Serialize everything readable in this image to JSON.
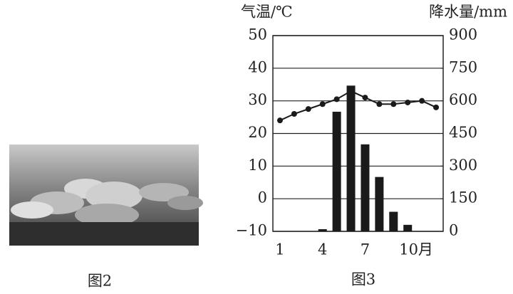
{
  "chart_data": {
    "type": "combo",
    "y_label": "气温/℃",
    "y2_label": "降水量/mm",
    "categories": [
      "1",
      null,
      null,
      "4",
      null,
      null,
      "7",
      null,
      null,
      "10月",
      null,
      null
    ],
    "series": [
      {
        "type": "bar",
        "axis": "y2",
        "color": "#1a1a1a",
        "values": [
          0,
          0,
          0,
          10,
          550,
          670,
          400,
          250,
          90,
          30,
          0,
          0
        ]
      },
      {
        "type": "line",
        "axis": "y",
        "color": "#1a1a1a",
        "values": [
          24,
          26,
          27.5,
          29,
          30.5,
          33,
          31,
          29,
          29,
          29.5,
          30,
          28
        ]
      }
    ],
    "ylim": [
      -10,
      50
    ],
    "yticks": [
      {
        "value": -10,
        "label": "−10"
      },
      0,
      10,
      20,
      30,
      40,
      50
    ],
    "y2lim": [
      0,
      900
    ],
    "y2ticks": [
      0,
      150,
      300,
      450,
      600,
      750,
      900
    ],
    "grid": true
  },
  "captions": {
    "figure2": "图2",
    "figure3": "图3"
  }
}
